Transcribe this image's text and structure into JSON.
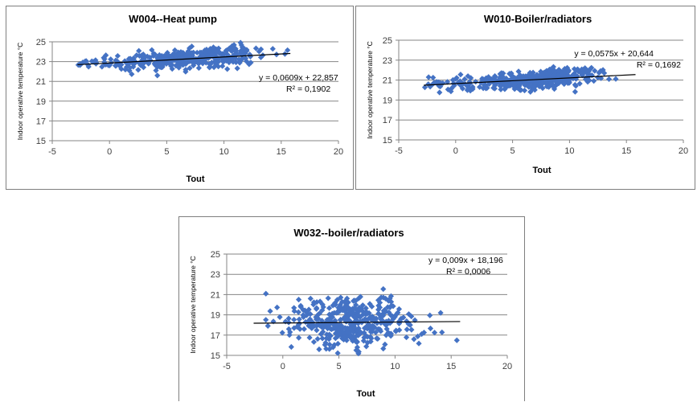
{
  "colors": {
    "marker": "#4472c4",
    "trendline": "#000000",
    "grid": "#868686",
    "axis": "#868686"
  },
  "chart_data": [
    {
      "type": "scatter",
      "title": "W004--Heat pump",
      "xlabel": "Tout",
      "ylabel": "Indoor operative temperature °C",
      "xlim": [
        -5,
        20
      ],
      "ylim": [
        15,
        25
      ],
      "xticks": [
        -5,
        0,
        5,
        10,
        15,
        20
      ],
      "yticks": [
        15,
        17,
        19,
        21,
        23,
        25
      ],
      "grid": "horizontal",
      "marker": "diamond",
      "trendline": {
        "slope": 0.0609,
        "intercept": 22.857,
        "x_range": [
          -2.8,
          15.8
        ],
        "equation": "y = 0,0609x + 22,857",
        "r2": "R² = 0,1902"
      },
      "n_points": 330,
      "x_range": [
        -2.8,
        15.8
      ],
      "x_center": 6.5,
      "y_spread": 0.45,
      "clusters": [
        {
          "x": [
            -2.8,
            1
          ],
          "n": 20,
          "y_offset": 0
        },
        {
          "x": [
            8,
            12
          ],
          "n": 40,
          "y_offset": 0.7
        },
        {
          "x": [
            4,
            7
          ],
          "n": 25,
          "y_offset": -0.5
        }
      ]
    },
    {
      "type": "scatter",
      "title": "W010-Boiler/radiators",
      "xlabel": "Tout",
      "ylabel": "Indoor operative temperature °C",
      "xlim": [
        -5,
        20
      ],
      "ylim": [
        15,
        25
      ],
      "xticks": [
        -5,
        0,
        5,
        10,
        15,
        20
      ],
      "yticks": [
        15,
        17,
        19,
        21,
        23,
        25
      ],
      "grid": "horizontal",
      "marker": "diamond",
      "trendline": {
        "slope": 0.0575,
        "intercept": 20.644,
        "x_range": [
          -2.8,
          15.8
        ],
        "equation": "y = 0,0575x + 20,644",
        "r2": "R² = 0,1692"
      },
      "n_points": 330,
      "x_range": [
        -2.8,
        15.8
      ],
      "x_center": 6.5,
      "y_spread": 0.4,
      "clusters": [
        {
          "x": [
            -2.8,
            1
          ],
          "n": 20,
          "y_offset": 0
        },
        {
          "x": [
            7.5,
            12.5
          ],
          "n": 40,
          "y_offset": 0.7
        },
        {
          "x": [
            4,
            7
          ],
          "n": 30,
          "y_offset": -0.6
        }
      ]
    },
    {
      "type": "scatter",
      "title": "W032--boiler/radiators",
      "xlabel": "Tout",
      "ylabel": "Indoor operative temperature °C",
      "xlim": [
        -5,
        20
      ],
      "ylim": [
        15,
        25
      ],
      "xticks": [
        -5,
        0,
        5,
        10,
        15,
        20
      ],
      "yticks": [
        15,
        17,
        19,
        21,
        23,
        25
      ],
      "grid": "horizontal",
      "marker": "diamond",
      "trendline": {
        "slope": 0.009,
        "intercept": 18.196,
        "x_range": [
          -2.6,
          15.8
        ],
        "equation": "y = 0,009x + 18,196",
        "r2": "R² = 0,0006"
      },
      "n_points": 360,
      "x_range": [
        -2.6,
        15.8
      ],
      "x_center": 6.0,
      "y_spread": 1.25,
      "clusters": [
        {
          "x": [
            4.5,
            7
          ],
          "n": 35,
          "y_offset": 1.2
        },
        {
          "x": [
            4.5,
            7
          ],
          "n": 25,
          "y_offset": -1.3
        },
        {
          "x": [
            8.5,
            10
          ],
          "n": 15,
          "y_offset": 1.5
        }
      ]
    }
  ]
}
